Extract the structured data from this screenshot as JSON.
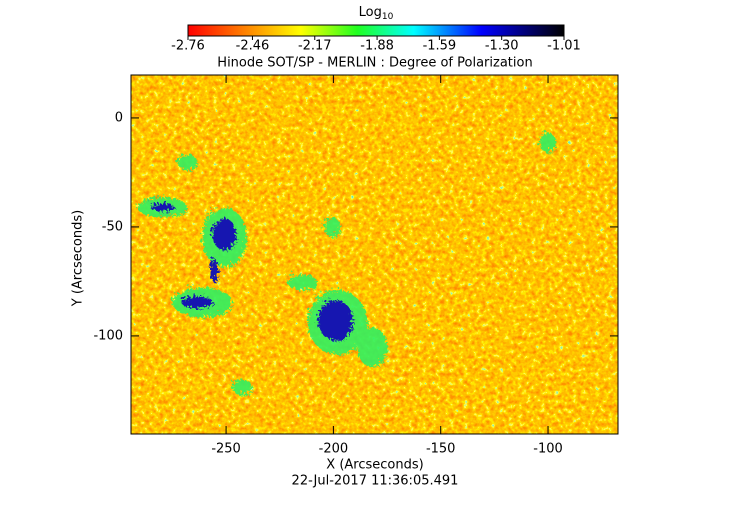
{
  "chart_data": {
    "type": "heatmap",
    "title": "Hinode SOT/SP - MERLIN : Degree of Polarization",
    "colorbar_label": {
      "text": "Log",
      "subscript": "10"
    },
    "clim": [
      -2.76,
      -1.01
    ],
    "cticks": [
      -2.76,
      -2.46,
      -2.17,
      -1.88,
      -1.59,
      {
        "value": -1.3,
        "label": "-1.30"
      },
      -1.01
    ],
    "x_label": "X (Arcseconds)",
    "y_label": "Y (Arcseconds)",
    "xlim": [
      -294.3,
      -67.4
    ],
    "xticks": [
      -250,
      -200,
      -150,
      -100
    ],
    "ylim": [
      -145,
      19.7
    ],
    "yticks": [
      0,
      -50,
      -100
    ],
    "timestamp": "22-Jul-2017 11:36:05.491"
  }
}
